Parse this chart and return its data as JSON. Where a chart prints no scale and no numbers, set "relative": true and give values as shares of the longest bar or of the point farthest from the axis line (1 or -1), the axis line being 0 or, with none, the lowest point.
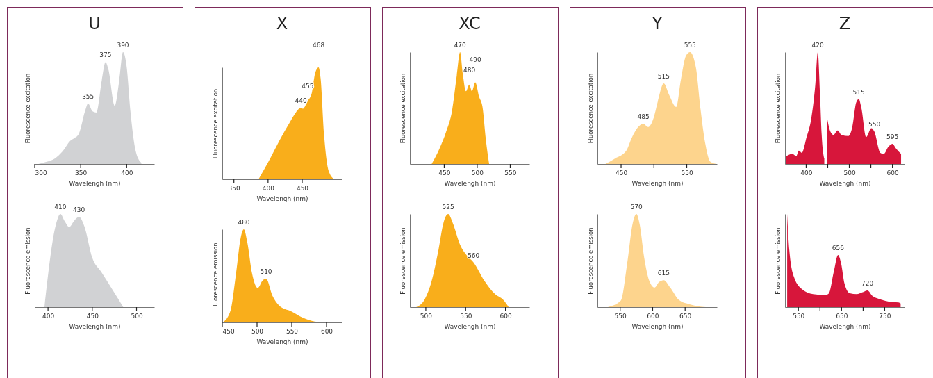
{
  "chart_data": [
    {
      "type": "area",
      "title": "U",
      "xlabel": "Wavelengh (nm)",
      "ylabel": "Fluorescence excitation",
      "relative": true,
      "color": "#d1d2d4",
      "tick_labels": "x",
      "xlim": [
        300,
        430
      ],
      "xticks": [
        300,
        350,
        400
      ],
      "x": [
        304,
        313,
        322,
        330,
        339,
        343,
        348,
        355,
        358,
        363,
        367,
        373,
        377,
        380,
        387,
        392,
        396,
        400,
        404,
        410,
        416
      ],
      "values": [
        0,
        0.02,
        0.05,
        0.11,
        0.21,
        0.23,
        0.27,
        0.48,
        0.54,
        0.47,
        0.46,
        0.75,
        0.91,
        0.85,
        0.52,
        0.75,
        1,
        0.87,
        0.48,
        0.11,
        0.01
      ],
      "annotations": [
        {
          "text": "355",
          "x": 358,
          "y": 0.54
        },
        {
          "text": "375",
          "x": 377,
          "y": 0.91
        },
        {
          "text": "390",
          "x": 396,
          "y": 1
        }
      ]
    },
    {
      "type": "area",
      "xlabel": "Wavelengh (nm)",
      "ylabel": "Fluorescence emission",
      "relative": true,
      "color": "#d1d2d4",
      "tick_labels": "x",
      "xlim": [
        385,
        520
      ],
      "xticks": [
        400,
        450,
        500
      ],
      "x": [
        396,
        409,
        414,
        419,
        424,
        429,
        435,
        441,
        450,
        460,
        472,
        485
      ],
      "values": [
        0,
        0.89,
        1,
        0.92,
        0.86,
        0.92,
        0.97,
        0.87,
        0.53,
        0.38,
        0.2,
        0
      ],
      "annotations": [
        {
          "text": "410",
          "x": 414,
          "y": 1
        },
        {
          "text": "430",
          "x": 435,
          "y": 0.97
        }
      ]
    },
    {
      "type": "area",
      "title": "X",
      "xlabel": "Wavelengh (nm)",
      "ylabel": "Fluorescence excitation",
      "relative": true,
      "color": "#f9ae1b",
      "tick_labels": "x",
      "xlim": [
        333,
        508
      ],
      "xticks": [
        350,
        400,
        450
      ],
      "x": [
        386,
        400,
        417,
        431,
        441,
        448,
        451,
        458,
        464,
        469,
        474,
        477,
        482,
        489,
        497
      ],
      "values": [
        0,
        0.15,
        0.35,
        0.5,
        0.6,
        0.64,
        0.63,
        0.7,
        0.77,
        0.95,
        1,
        0.9,
        0.4,
        0.07,
        0
      ],
      "annotations": [
        {
          "text": "440",
          "x": 448,
          "y": 0.64
        },
        {
          "text": "455",
          "x": 458,
          "y": 0.7
        },
        {
          "text": "468",
          "x": 474,
          "y": 1
        }
      ]
    },
    {
      "type": "area",
      "xlabel": "Wavelengh (nm)",
      "ylabel": "Fluorescence emission",
      "relative": true,
      "color": "#f9ae1b",
      "tick_labels": "x",
      "xlim": [
        450,
        622
      ],
      "xticks": [
        450,
        500,
        550,
        600
      ],
      "x": [
        451,
        462,
        470,
        476,
        481,
        486,
        493,
        501,
        508,
        513,
        522,
        532,
        549,
        566,
        583,
        600
      ],
      "values": [
        0,
        0.13,
        0.54,
        0.89,
        1,
        0.86,
        0.52,
        0.37,
        0.45,
        0.47,
        0.29,
        0.18,
        0.12,
        0.05,
        0.01,
        0
      ],
      "annotations": [
        {
          "text": "480",
          "x": 481,
          "y": 1
        },
        {
          "text": "510",
          "x": 513,
          "y": 0.47
        }
      ]
    },
    {
      "type": "area",
      "title": "XC",
      "xlabel": "Wavelengh (nm)",
      "ylabel": "Fluorescence excitation",
      "relative": true,
      "color": "#f9ae1b",
      "tick_labels": "x",
      "xlim": [
        398,
        579
      ],
      "xticks": [
        450,
        500,
        550
      ],
      "x": [
        431,
        443,
        453,
        462,
        469,
        474,
        478,
        483,
        488,
        492,
        497,
        503,
        508,
        513,
        518
      ],
      "values": [
        0,
        0.14,
        0.29,
        0.48,
        0.79,
        1,
        0.81,
        0.65,
        0.71,
        0.65,
        0.73,
        0.6,
        0.51,
        0.22,
        0
      ],
      "annotations": [
        {
          "text": "470",
          "x": 474,
          "y": 1
        },
        {
          "text": "480",
          "x": 488,
          "y": 0.71
        },
        {
          "text": "490",
          "x": 497,
          "y": 0.73
        }
      ]
    },
    {
      "type": "area",
      "xlabel": "Wavelengh (nm)",
      "ylabel": "Fluorescence emission",
      "relative": true,
      "color": "#f9ae1b",
      "tick_labels": "x",
      "xlim": [
        480,
        630
      ],
      "xticks": [
        500,
        550,
        600
      ],
      "x": [
        488,
        499,
        507,
        516,
        522,
        528,
        534,
        543,
        551,
        560,
        573,
        587,
        597,
        604
      ],
      "values": [
        0,
        0.09,
        0.27,
        0.62,
        0.9,
        1,
        0.9,
        0.67,
        0.56,
        0.48,
        0.29,
        0.14,
        0.08,
        0
      ],
      "annotations": [
        {
          "text": "525",
          "x": 528,
          "y": 1
        },
        {
          "text": "560",
          "x": 560,
          "y": 0.48
        }
      ]
    },
    {
      "type": "area",
      "title": "Y",
      "xlabel": "Wavelengh (nm)",
      "ylabel": "Fluorescence excitation",
      "relative": true,
      "color": "#fdd48d",
      "tick_labels": "x",
      "xlim": [
        414,
        596
      ],
      "xticks": [
        450,
        {
          "value": 500,
          "label": null
        },
        550
      ],
      "x": [
        426,
        441,
        458,
        466,
        476,
        484,
        491,
        500,
        506,
        515,
        523,
        534,
        541,
        549,
        555,
        564,
        571,
        578,
        586,
        595
      ],
      "values": [
        0,
        0.05,
        0.12,
        0.23,
        0.33,
        0.36,
        0.33,
        0.42,
        0.56,
        0.72,
        0.62,
        0.51,
        0.75,
        0.97,
        1,
        0.86,
        0.49,
        0.19,
        0.02,
        0
      ],
      "annotations": [
        {
          "text": "485",
          "x": 484,
          "y": 0.36
        },
        {
          "text": "515",
          "x": 515,
          "y": 0.72
        },
        {
          "text": "555",
          "x": 555,
          "y": 1
        }
      ]
    },
    {
      "type": "area",
      "xlabel": "Wavelengh (nm)",
      "ylabel": "Fluorescence emission",
      "relative": true,
      "color": "#fdd48d",
      "tick_labels": "x",
      "xlim": [
        515,
        699
      ],
      "xticks": [
        550,
        600,
        650
      ],
      "x": [
        531,
        551,
        561,
        569,
        575,
        580,
        587,
        595,
        603,
        610,
        617,
        627,
        640,
        657,
        682
      ],
      "values": [
        0,
        0.07,
        0.48,
        0.89,
        1,
        0.89,
        0.53,
        0.28,
        0.21,
        0.27,
        0.29,
        0.21,
        0.08,
        0.03,
        0
      ],
      "annotations": [
        {
          "text": "570",
          "x": 575,
          "y": 1
        },
        {
          "text": "615",
          "x": 617,
          "y": 0.29
        }
      ]
    },
    {
      "type": "area",
      "title": "Z",
      "xlabel": "Wavelengh (nm)",
      "ylabel": "Fluorescence excitation",
      "relative": true,
      "color": "#d7163b",
      "tick_labels": "x",
      "xlim": [
        351,
        628
      ],
      "xticks": [
        400,
        {
          "value": 450,
          "label": null
        },
        500,
        {
          "value": 550,
          "label": null
        },
        600
      ],
      "x": [
        354,
        368,
        377,
        383,
        390,
        401,
        412,
        421,
        427,
        432,
        436,
        442,
        446,
        449,
        456,
        463,
        473,
        482,
        498,
        507,
        516,
        522,
        528,
        539,
        551,
        558,
        572,
        580,
        590,
        600,
        608,
        620
      ],
      "values": [
        0.07,
        0.09,
        0.07,
        0.12,
        0.1,
        0.24,
        0.41,
        0.7,
        1,
        0.63,
        0.26,
        0.05,
        null,
        0.4,
        0.29,
        0.26,
        0.3,
        0.26,
        0.25,
        0.33,
        0.55,
        0.58,
        0.5,
        0.24,
        0.32,
        0.29,
        0.1,
        0.09,
        0.15,
        0.18,
        0.14,
        0.09
      ],
      "annotations": [
        {
          "text": "420",
          "x": 427,
          "y": 1
        },
        {
          "text": "515",
          "x": 522,
          "y": 0.58
        },
        {
          "text": "550",
          "x": 558,
          "y": 0.29
        },
        {
          "text": "595",
          "x": 600,
          "y": 0.18
        }
      ]
    },
    {
      "type": "area",
      "xlabel": "Wavelengh (nm)",
      "ylabel": "Fluorescence emission",
      "relative": true,
      "color": "#d7163b",
      "tick_labels": "x",
      "xlim": [
        519,
        796
      ],
      "xticks": [
        550,
        {
          "value": 600,
          "label": null
        },
        650,
        {
          "value": 700,
          "label": null
        },
        750
      ],
      "x": [
        524,
        529,
        540,
        559,
        584,
        612,
        621,
        632,
        642,
        649,
        657,
        669,
        685,
        699,
        710,
        722,
        736,
        759,
        782,
        787
      ],
      "values": [
        1,
        0.61,
        0.32,
        0.19,
        0.14,
        0.13,
        0.15,
        0.38,
        0.56,
        0.47,
        0.25,
        0.15,
        0.14,
        0.16,
        0.18,
        0.12,
        0.09,
        0.06,
        0.05,
        0.04
      ],
      "annotations": [
        {
          "text": "656",
          "x": 642,
          "y": 0.56
        },
        {
          "text": "720",
          "x": 710,
          "y": 0.18
        }
      ]
    }
  ]
}
